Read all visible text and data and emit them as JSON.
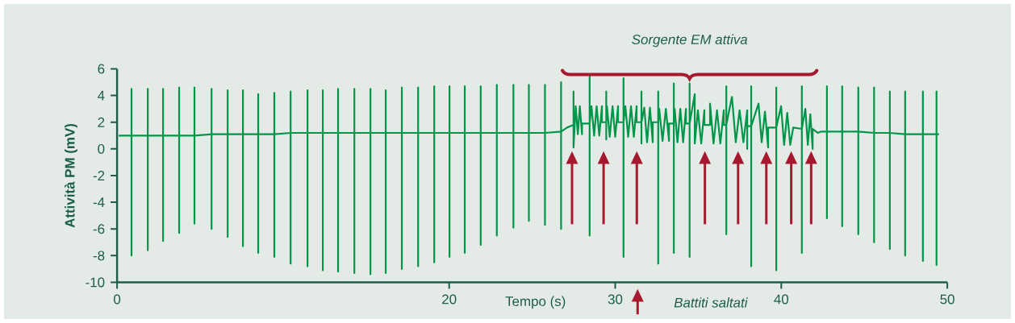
{
  "chart_data": {
    "type": "line",
    "xlabel": "Tempo (s)",
    "ylabel": "Attività PM (mV)",
    "xlim": [
      0,
      50
    ],
    "ylim": [
      -10,
      6
    ],
    "xticks": [
      0,
      20,
      30,
      40,
      50
    ],
    "yticks": [
      -10,
      -8,
      -6,
      -4,
      -2,
      0,
      2,
      4,
      6
    ],
    "series": [
      {
        "color": "#00964a",
        "x": [
          0.1,
          0.87,
          0.87,
          0.87,
          0.87,
          1.85,
          1.85,
          1.85,
          1.85,
          2.77,
          2.77,
          2.77,
          2.77,
          3.74,
          3.74,
          3.74,
          3.74,
          4.66,
          4.66,
          4.66,
          4.66,
          5.69,
          5.69,
          5.69,
          5.69,
          6.66,
          6.66,
          6.66,
          6.66,
          7.58,
          7.58,
          7.58,
          7.58,
          8.5,
          8.5,
          8.5,
          8.5,
          9.47,
          9.47,
          9.47,
          9.47,
          10.45,
          10.45,
          10.45,
          10.45,
          11.47,
          11.47,
          11.47,
          11.47,
          12.39,
          12.39,
          12.39,
          12.39,
          13.31,
          13.31,
          13.31,
          13.31,
          14.29,
          14.29,
          14.29,
          14.29,
          15.26,
          15.26,
          15.26,
          15.26,
          16.18,
          16.18,
          16.18,
          16.18,
          17.15,
          17.15,
          17.15,
          17.15,
          18.13,
          18.13,
          18.13,
          18.13,
          19.1,
          19.1,
          19.1,
          19.1,
          20.02,
          20.02,
          20.02,
          20.02,
          20.94,
          20.94,
          20.94,
          20.94,
          21.9,
          21.9,
          21.9,
          21.9,
          22.87,
          22.87,
          22.87,
          22.87,
          23.87,
          23.87,
          23.87,
          23.87,
          24.8,
          24.8,
          24.8,
          24.8,
          25.77,
          25.77,
          25.77,
          25.77,
          26.74,
          26.74,
          26.74,
          26.74,
          27.1,
          27.49,
          27.49,
          27.49,
          27.62,
          27.75,
          27.87,
          28.0,
          28.0,
          28.46,
          28.46,
          28.46,
          28.46,
          28.57,
          28.73,
          28.88,
          29.04,
          29.2,
          29.2,
          29.46,
          29.46,
          29.46,
          29.46,
          29.5,
          29.67,
          29.84,
          30.0,
          30.17,
          30.17,
          30.5,
          30.5,
          30.5,
          30.5,
          30.61,
          30.78,
          30.95,
          31.12,
          31.29,
          31.29,
          31.58,
          31.58,
          31.58,
          31.58,
          31.75,
          31.92,
          32.09,
          32.26,
          32.26,
          32.59,
          32.59,
          32.59,
          32.59,
          32.65,
          32.85,
          33.05,
          33.24,
          33.24,
          33.53,
          33.53,
          33.53,
          33.53,
          33.58,
          33.75,
          33.92,
          34.09,
          34.26,
          34.26,
          34.48,
          34.48,
          34.48,
          34.48,
          34.79,
          34.79,
          34.98,
          35.18,
          35.37,
          35.37,
          35.71,
          35.71,
          35.92,
          36.13,
          36.33,
          36.54,
          36.54,
          36.69,
          36.69,
          36.69,
          36.69,
          37.03,
          37.26,
          37.49,
          37.72,
          37.95,
          37.95,
          37.95,
          38.19,
          38.19,
          38.19,
          38.19,
          38.63,
          38.82,
          39.02,
          39.21,
          39.21,
          39.7,
          39.7,
          39.7,
          39.7,
          39.99,
          40.17,
          40.36,
          40.54,
          40.72,
          41.24,
          41.24,
          41.24,
          41.24,
          41.45,
          41.6,
          41.75,
          41.89,
          41.89,
          42.2,
          42.4,
          42.75,
          42.75,
          42.75,
          42.75,
          43.67,
          43.67,
          43.67,
          43.67,
          44.64,
          44.64,
          44.64,
          44.64,
          45.59,
          45.59,
          45.59,
          45.59,
          46.54,
          46.54,
          46.54,
          46.54,
          47.46,
          47.46,
          47.46,
          47.46,
          48.53,
          48.53,
          48.53,
          48.53,
          49.35,
          49.35,
          49.35,
          49.35,
          49.5
        ],
        "values": [
          1.0,
          1.0,
          4.5,
          -8.0,
          1.0,
          1.0,
          4.5,
          -7.6,
          1.0,
          1.0,
          4.5,
          -6.9,
          1.0,
          1.0,
          4.6,
          -6.3,
          1.0,
          1.0,
          4.6,
          -5.6,
          1.0,
          1.1,
          4.5,
          -6.0,
          1.1,
          1.1,
          4.4,
          -6.6,
          1.1,
          1.1,
          4.4,
          -7.3,
          1.1,
          1.1,
          4.1,
          -7.8,
          1.1,
          1.1,
          4.2,
          -8.1,
          1.1,
          1.2,
          4.3,
          -8.6,
          1.2,
          1.2,
          4.4,
          -8.8,
          1.2,
          1.2,
          4.4,
          -9.1,
          1.2,
          1.2,
          4.5,
          -9.2,
          1.2,
          1.2,
          4.5,
          -9.3,
          1.2,
          1.2,
          4.5,
          -9.4,
          1.2,
          1.2,
          4.4,
          -9.3,
          1.2,
          1.2,
          4.6,
          -9.0,
          1.2,
          1.2,
          4.6,
          -8.8,
          1.2,
          1.2,
          4.7,
          -8.5,
          1.2,
          1.2,
          4.7,
          -8.1,
          1.2,
          1.2,
          4.7,
          -7.8,
          1.2,
          1.2,
          4.7,
          -7.2,
          1.2,
          1.2,
          4.8,
          -6.5,
          1.2,
          1.2,
          4.8,
          -5.9,
          1.2,
          1.2,
          4.8,
          -5.4,
          1.2,
          1.2,
          4.8,
          -5.7,
          1.2,
          1.3,
          5.0,
          -6.0,
          1.3,
          1.6,
          1.8,
          4.3,
          0.1,
          3.2,
          1.1,
          3.2,
          1.1,
          1.9,
          1.9,
          5.5,
          -6.5,
          1.9,
          3.2,
          1.0,
          3.2,
          1.0,
          3.2,
          2.0,
          2.0,
          4.3,
          0.7,
          2.0,
          3.2,
          0.9,
          3.2,
          0.9,
          3.2,
          2.0,
          2.0,
          5.3,
          -8.1,
          2.0,
          3.2,
          0.9,
          3.2,
          0.9,
          3.2,
          2.0,
          2.0,
          4.3,
          0.4,
          2.0,
          3.1,
          0.5,
          3.1,
          0.5,
          2.0,
          2.0,
          4.3,
          -8.6,
          2.0,
          3.0,
          0.6,
          3.0,
          0.6,
          1.9,
          1.9,
          4.9,
          -7.8,
          1.9,
          3.0,
          0.5,
          3.0,
          0.5,
          3.0,
          1.9,
          1.9,
          4.9,
          -8.1,
          1.9,
          4.1,
          0.4,
          2.9,
          0.4,
          2.9,
          1.8,
          1.8,
          3.4,
          0.4,
          2.9,
          0.4,
          2.9,
          1.8,
          1.8,
          4.7,
          -6.4,
          1.8,
          3.9,
          0.5,
          2.9,
          0.5,
          2.9,
          0.0,
          1.7,
          1.7,
          4.7,
          -8.8,
          1.7,
          3.4,
          0.5,
          2.8,
          0.1,
          1.6,
          1.6,
          4.6,
          -9.1,
          1.6,
          3.2,
          0.3,
          2.7,
          0.3,
          1.6,
          1.5,
          4.7,
          -7.8,
          1.5,
          3.0,
          0.3,
          2.6,
          0.0,
          1.5,
          1.2,
          1.3,
          1.3,
          4.7,
          -5.2,
          1.3,
          1.3,
          4.7,
          -5.8,
          1.3,
          1.3,
          4.6,
          -6.4,
          1.3,
          1.2,
          4.6,
          -7.0,
          1.2,
          1.2,
          4.3,
          -7.5,
          1.2,
          1.1,
          4.3,
          -8.0,
          1.1,
          1.1,
          4.3,
          -8.4,
          1.1,
          1.1,
          4.3,
          -8.7,
          1.1,
          1.1
        ]
      }
    ],
    "ref_lines": [
      {
        "axis": "x",
        "value": 27.4,
        "color": "#a6192e"
      },
      {
        "axis": "x",
        "value": 29.3,
        "color": "#a6192e"
      },
      {
        "axis": "x",
        "value": 31.3,
        "color": "#a6192e"
      },
      {
        "axis": "x",
        "value": 35.4,
        "color": "#a6192e"
      },
      {
        "axis": "x",
        "value": 37.4,
        "color": "#a6192e"
      },
      {
        "axis": "x",
        "value": 39.1,
        "color": "#a6192e"
      },
      {
        "axis": "x",
        "value": 40.6,
        "color": "#a6192e"
      },
      {
        "axis": "x",
        "value": 41.8,
        "color": "#a6192e"
      }
    ],
    "annotations": [
      "Sorgente EM attiva",
      "Battiti saltati"
    ]
  }
}
